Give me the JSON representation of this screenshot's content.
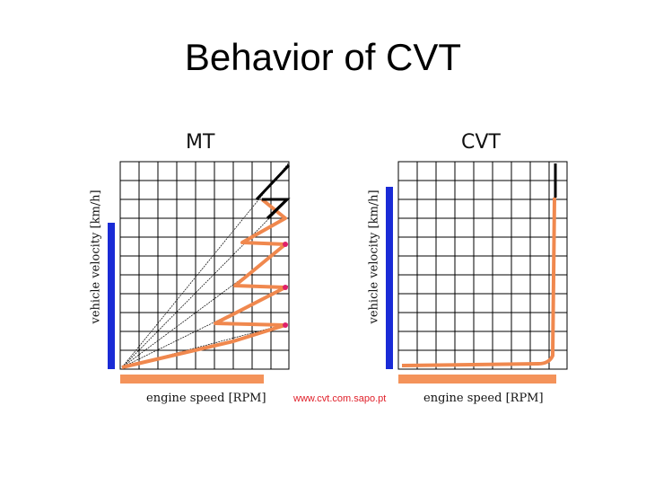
{
  "title": "Behavior of CVT",
  "panels": {
    "mt": {
      "title": "MT",
      "ylabel": "vehicle velocity [km/h]",
      "xlabel": "engine speed [RPM]"
    },
    "cvt": {
      "title": "CVT",
      "ylabel": "vehicle velocity [km/h]",
      "xlabel": "engine speed [RPM]"
    }
  },
  "source": "www.cvt.com.sapo.pt",
  "colors": {
    "velocity_bar": "#1a2bd6",
    "rpm_bar": "#f4935a",
    "trace": "#f0884e",
    "shift_marker": "#e0206a",
    "grid": "#000000",
    "top_gear": "#000000"
  }
}
